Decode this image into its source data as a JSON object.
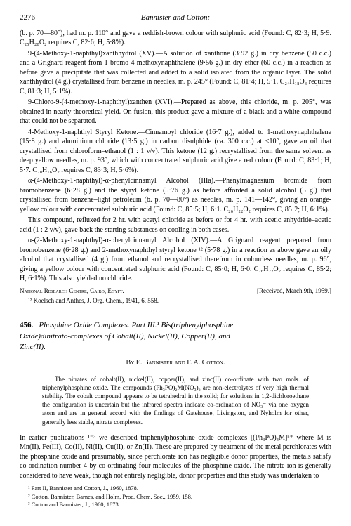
{
  "header": {
    "page_number": "2276",
    "running_title": "Bannister and Cotton:"
  },
  "upper_paragraphs": [
    "(b. p. 70—80°), had m. p. 110° and gave a reddish-brown colour with sulphuric acid (Found: C, 82·3; H, 5·9. C₂₅H₂₀O₂ requires C, 82·6; H, 5·8%).",
    "9-(4-Methoxy-1-naphthyl)xanthhydrol (XV).—A solution of xanthone (3·92 g.) in dry benzene (50 c.c.) and a Grignard reagent from 1-bromo-4-methoxynaphthalene (9·56 g.) in dry ether (60 c.c.) in a reaction as before gave a precipitate that was collected and added to a solid isolated from the organic layer. The solid xanthhydrol (4 g.) crystallised from benzene in needles, m. p. 245° (Found: C, 81·4; H, 5·1. C₂₄H₁₈O₃ requires C, 81·3; H, 5·1%).",
    "9-Chloro-9-(4-methoxy-1-naphthyl)xanthen (XVI).—Prepared as above, this chloride, m. p. 205°, was obtained in nearly theoretical yield. On fusion, this product gave a mixture of a black and a white compound that could not be separated.",
    "4-Methoxy-1-naphthyl Styryl Ketone.—Cinnamoyl chloride (16·7 g.), added to 1-methoxynaphthalene (15·8 g.) and aluminium chloride (13·5 g.) in carbon disulphide (ca. 300 c.c.) at <10°, gave an oil that crystallised from chloroform–ethanol (1 : 1 v/v). This ketone (12 g.) recrystallised from the same solvent as deep yellow needles, m. p. 93°, which with concentrated sulphuric acid give a red colour (Found: C, 83·1; H, 5·7. C₂₀H₁₆O₂ requires C, 83·3; H, 5·6%).",
    "α-(4-Methoxy-1-naphthyl)-α-phenylcinnamyl Alcohol (IIIa).—Phenylmagnesium bromide from bromobenzene (6·28 g.) and the styryl ketone (5·76 g.) as before afforded a solid alcohol (5 g.) that crystallised from benzene–light petroleum (b. p. 70—80°) as needles, m. p. 141—142°, giving an orange-yellow colour with concentrated sulphuric acid (Found: C, 85·5; H, 6·1. C₂₆H₂₂O₂ requires C, 85·2; H, 6·1%).",
    "This compound, refluxed for 2 hr. with acetyl chloride as before or for 4 hr. with acetic anhydride–acetic acid (1 : 2 v/v), gave back the starting substances on cooling in both cases.",
    "α-(2-Methoxy-1-naphthyl)-α-phenylcinnamyl Alcohol (XIV).—A Grignard reagent prepared from bromobenzene (6·28 g.) and 2-methoxynaphthyl styryl ketone ¹² (5·78 g.) in a reaction as above gave an oily alcohol that crystallised (4 g.) from ethanol and recrystallised therefrom in colourless needles, m. p. 96°, giving a yellow colour with concentrated sulphuric acid (Found: C, 85·0; H, 6·0. C₂₆H₂₂O₂ requires C, 85·2; H, 6·1%). This also yielded no chloride."
  ],
  "affiliation": {
    "left": "National Research Centre, Cairo, Egypt.",
    "right": "[Received, March 9th, 1959.]"
  },
  "upper_footnote": "¹² Koelsch and Anthes, J. Org. Chem., 1941, 6, 558.",
  "article": {
    "number": "456.",
    "title_line1": "Phosphine Oxide Complexes.   Part III.¹   Bis(triphenylphosphine",
    "title_line2": "Oxide)dinitrato-complexes of Cobalt(II), Nickel(II), Copper(II), and",
    "title_line3": "Zinc(II).",
    "authors": "By E. Bannister and F. A. Cotton.",
    "abstract": "The nitrates of cobalt(II), nickel(II), copper(II), and zinc(II) co-ordinate with two mols. of triphenylphosphine oxide. The compounds (Ph₃PO)₂M(NO₃)₂ are non-electrolytes of very high thermal stability. The cobalt compound appears to be tetrahedral in the solid; for solutions in 1,2-dichloroethane the configuration is uncertain but the infrared spectra indicate co-ordination of NO₃⁻ via one oxygen atom and are in general accord with the findings of Gatehouse, Livingston, and Nyholm for other, generally less stable, nitrate complexes.",
    "body": "In earlier publications ¹⁻³ we described triphenylphosphine oxide complexes [(Ph₃PO)₄M]ⁿ⁺ where M is Mn(II), Fe(III), Co(II), Ni(II), Cu(II), or Zn(II). These are prepared by treatment of the metal perchlorates with the phosphine oxide and presumably, since perchlorate ion has negligible donor properties, the metals satisfy co-ordination number 4 by co-ordinating four molecules of the phosphine oxide. The nitrate ion is generally considered to have weak, though not entirely negligible, donor properties and this study was undertaken to",
    "footnotes": [
      "¹ Part II, Bannister and Cotton, J., 1960, 1878.",
      "² Cotton, Bannister, Barnes, and Holm, Proc. Chem. Soc., 1959, 158.",
      "³ Cotton and Bannister, J., 1960, 1873."
    ]
  }
}
